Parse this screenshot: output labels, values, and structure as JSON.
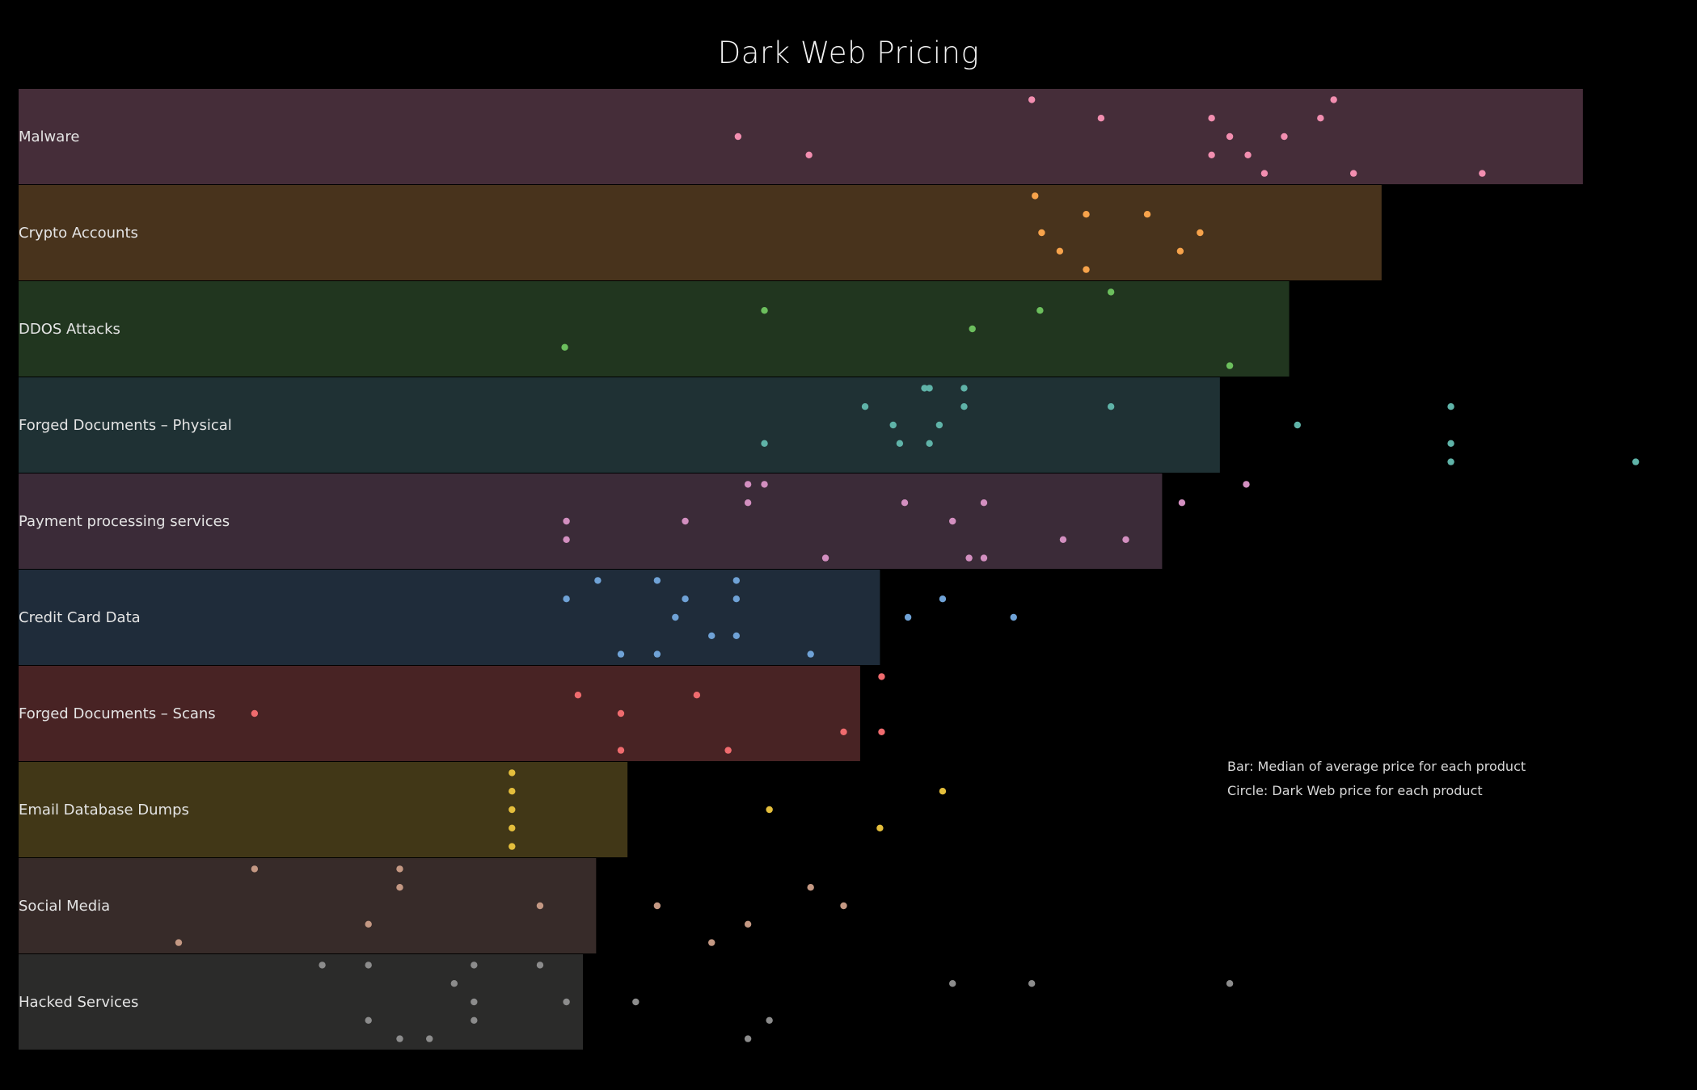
{
  "title": "Dark Web Pricing",
  "notes": {
    "bar": "Bar: Median of average price for each product",
    "circle": "Circle: Dark Web price for each product"
  },
  "chart_data": {
    "type": "bar",
    "orientation": "horizontal",
    "title": "Dark Web Pricing",
    "grid": false,
    "legend": "none",
    "value_axis": "x",
    "xlim": [
      0,
      100
    ],
    "x_unit_note": "relative scale (no axis printed)",
    "categories": [
      "Malware",
      "Crypto Accounts",
      "DDOS Attacks",
      "Forged Documents – Physical",
      "Payment processing services",
      "Credit Card Data",
      "Forged Documents – Scans",
      "Email Database Dumps",
      "Social Media",
      "Hacked Services"
    ],
    "bar_values": [
      94.8,
      82.6,
      77.0,
      72.8,
      69.3,
      52.2,
      51.0,
      36.9,
      35.0,
      34.2
    ],
    "bar_colors": [
      "#452d39",
      "#48331c",
      "#21361f",
      "#1f3134",
      "#3b2b38",
      "#1f2c3a",
      "#482324",
      "#413717",
      "#372b29",
      "#2b2b2a"
    ],
    "point_colors": [
      "#f28eb0",
      "#f7a34b",
      "#6cbf5d",
      "#5fb3a8",
      "#d38fc0",
      "#6fa2d6",
      "#ef6b6e",
      "#e4be3c",
      "#c49883",
      "#8c8c8c"
    ],
    "points": [
      [
        [
          61.4,
          0.1
        ],
        [
          43.6,
          0.5
        ],
        [
          65.6,
          0.3
        ],
        [
          72.3,
          0.3
        ],
        [
          73.4,
          0.5
        ],
        [
          76.7,
          0.5
        ],
        [
          72.3,
          0.7
        ],
        [
          74.5,
          0.7
        ],
        [
          78.9,
          0.3
        ],
        [
          79.7,
          0.1
        ],
        [
          75.5,
          0.9
        ],
        [
          80.9,
          0.9
        ],
        [
          88.7,
          0.9
        ],
        [
          47.9,
          0.7
        ]
      ],
      [
        [
          61.6,
          0.1
        ],
        [
          62.0,
          0.5
        ],
        [
          64.7,
          0.3
        ],
        [
          63.1,
          0.7
        ],
        [
          64.7,
          0.9
        ],
        [
          68.4,
          0.3
        ],
        [
          71.6,
          0.5
        ],
        [
          70.4,
          0.7
        ]
      ],
      [
        [
          33.1,
          0.7
        ],
        [
          45.2,
          0.3
        ],
        [
          57.8,
          0.5
        ],
        [
          61.9,
          0.3
        ],
        [
          66.2,
          0.1
        ],
        [
          73.4,
          0.9
        ]
      ],
      [
        [
          51.3,
          0.3
        ],
        [
          54.9,
          0.1
        ],
        [
          55.2,
          0.1
        ],
        [
          57.3,
          0.1
        ],
        [
          57.3,
          0.3
        ],
        [
          53.0,
          0.5
        ],
        [
          55.8,
          0.5
        ],
        [
          53.4,
          0.7
        ],
        [
          55.2,
          0.7
        ],
        [
          45.2,
          0.7
        ],
        [
          66.2,
          0.3
        ],
        [
          77.5,
          0.5
        ],
        [
          86.8,
          0.3
        ],
        [
          86.8,
          0.7
        ],
        [
          86.8,
          0.9
        ],
        [
          98.0,
          0.9
        ]
      ],
      [
        [
          44.2,
          0.1
        ],
        [
          45.2,
          0.1
        ],
        [
          44.2,
          0.3
        ],
        [
          53.7,
          0.3
        ],
        [
          58.5,
          0.3
        ],
        [
          70.5,
          0.3
        ],
        [
          33.2,
          0.5
        ],
        [
          40.4,
          0.5
        ],
        [
          56.6,
          0.5
        ],
        [
          33.2,
          0.7
        ],
        [
          63.3,
          0.7
        ],
        [
          67.1,
          0.7
        ],
        [
          48.9,
          0.9
        ],
        [
          57.6,
          0.9
        ],
        [
          58.5,
          0.9
        ],
        [
          74.4,
          0.1
        ]
      ],
      [
        [
          35.1,
          0.1
        ],
        [
          38.7,
          0.1
        ],
        [
          43.5,
          0.1
        ],
        [
          33.2,
          0.3
        ],
        [
          40.4,
          0.3
        ],
        [
          43.5,
          0.3
        ],
        [
          56.0,
          0.3
        ],
        [
          39.8,
          0.5
        ],
        [
          53.9,
          0.5
        ],
        [
          60.3,
          0.5
        ],
        [
          42.0,
          0.7
        ],
        [
          43.5,
          0.7
        ],
        [
          36.5,
          0.9
        ],
        [
          38.7,
          0.9
        ],
        [
          48.0,
          0.9
        ]
      ],
      [
        [
          52.3,
          0.1
        ],
        [
          14.3,
          0.5
        ],
        [
          33.9,
          0.3
        ],
        [
          41.1,
          0.3
        ],
        [
          36.5,
          0.5
        ],
        [
          50.0,
          0.7
        ],
        [
          52.3,
          0.7
        ],
        [
          36.5,
          0.9
        ],
        [
          43.0,
          0.9
        ]
      ],
      [
        [
          29.9,
          0.1
        ],
        [
          29.9,
          0.3
        ],
        [
          29.9,
          0.5
        ],
        [
          29.9,
          0.7
        ],
        [
          29.9,
          0.9
        ],
        [
          45.5,
          0.5
        ],
        [
          52.2,
          0.7
        ],
        [
          56.0,
          0.3
        ]
      ],
      [
        [
          14.3,
          0.1
        ],
        [
          23.1,
          0.1
        ],
        [
          23.1,
          0.3
        ],
        [
          31.6,
          0.5
        ],
        [
          21.2,
          0.7
        ],
        [
          9.7,
          0.9
        ],
        [
          38.7,
          0.5
        ],
        [
          48.0,
          0.3
        ],
        [
          50.0,
          0.5
        ],
        [
          44.2,
          0.7
        ],
        [
          42.0,
          0.9
        ]
      ],
      [
        [
          18.4,
          0.1
        ],
        [
          21.2,
          0.1
        ],
        [
          27.6,
          0.1
        ],
        [
          31.6,
          0.1
        ],
        [
          26.4,
          0.3
        ],
        [
          27.6,
          0.5
        ],
        [
          33.2,
          0.5
        ],
        [
          21.2,
          0.7
        ],
        [
          27.6,
          0.7
        ],
        [
          23.1,
          0.9
        ],
        [
          24.9,
          0.9
        ],
        [
          37.4,
          0.5
        ],
        [
          45.5,
          0.7
        ],
        [
          44.2,
          0.9
        ],
        [
          56.6,
          0.3
        ],
        [
          61.4,
          0.3
        ],
        [
          73.4,
          0.3
        ]
      ]
    ]
  }
}
